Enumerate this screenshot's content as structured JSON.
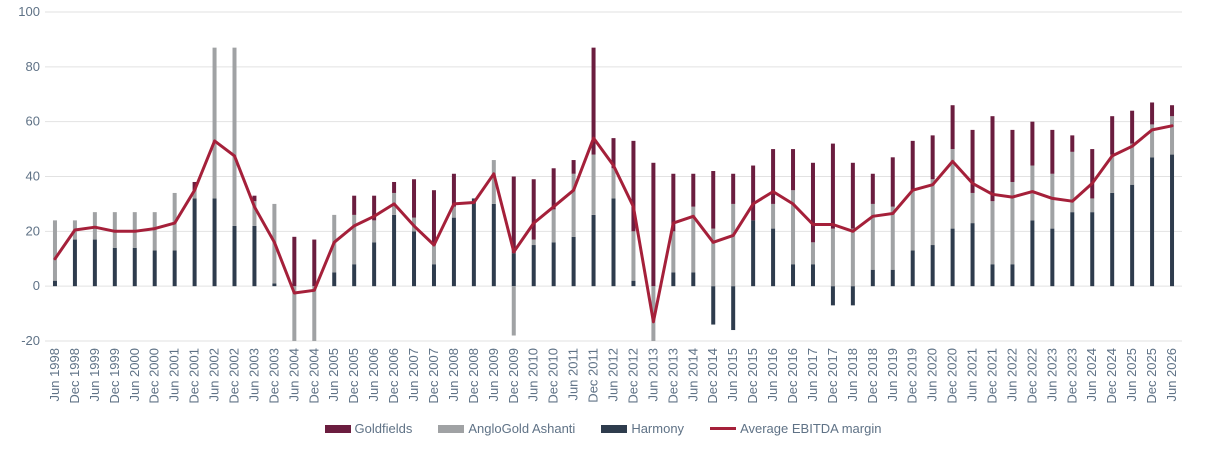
{
  "chart_data": {
    "type": "bar",
    "stacked": true,
    "categories": [
      "Jun 1998",
      "Dec 1998",
      "Jun 1999",
      "Dec 1999",
      "Jun 2000",
      "Dec 2000",
      "Jun 2001",
      "Dec 2001",
      "Jun 2002",
      "Dec 2002",
      "Jun 2003",
      "Dec 2003",
      "Jun 2004",
      "Dec 2004",
      "Jun 2005",
      "Dec 2005",
      "Jun 2006",
      "Dec 2006",
      "Jun 2007",
      "Dec 2007",
      "Jun 2008",
      "Dec 2008",
      "Jun 2009",
      "Dec 2009",
      "Jun 2010",
      "Dec 2010",
      "Jun 2011",
      "Dec 2011",
      "Jun 2012",
      "Dec 2012",
      "Jun 2013",
      "Dec 2013",
      "Jun 2014",
      "Dec 2014",
      "Jun 2015",
      "Dec 2015",
      "Jun 2016",
      "Dec 2016",
      "Jun 2017",
      "Dec 2017",
      "Jun 2018",
      "Dec 2018",
      "Jun 2019",
      "Dec 2019",
      "Jun 2020",
      "Dec 2020",
      "Jun 2021",
      "Dec 2021",
      "Jun 2022",
      "Dec 2022",
      "Jun 2023",
      "Dec 2023",
      "Jun 2024",
      "Dec 2024",
      "Jun 2025",
      "Dec 2025",
      "Jun 2026"
    ],
    "series": [
      {
        "name": "Harmony",
        "color": "#2e3c4d",
        "kind": "bar",
        "values": [
          2,
          17,
          17,
          14,
          14,
          13,
          13,
          32,
          32,
          22,
          22,
          1,
          0,
          0,
          5,
          8,
          16,
          26,
          20,
          8,
          25,
          32,
          30,
          12,
          15,
          16,
          18,
          26,
          32,
          2,
          0,
          5,
          5,
          -14,
          -16,
          24,
          21,
          8,
          8,
          -7,
          -7,
          6,
          6,
          13,
          15,
          21,
          23,
          8,
          8,
          24,
          21,
          27,
          27,
          34,
          37,
          47,
          48
        ]
      },
      {
        "name": "AngloGold Ashanti",
        "color": "#a0a2a4",
        "kind": "bar",
        "values": [
          22,
          7,
          10,
          13,
          13,
          14,
          21,
          3,
          55,
          65,
          9,
          29,
          -20,
          -20,
          21,
          18,
          8,
          8,
          5,
          7,
          4,
          0,
          16,
          -18,
          2,
          12,
          23,
          22,
          11,
          18,
          -20,
          15,
          24,
          21,
          30,
          0,
          9,
          27,
          8,
          21,
          21,
          24,
          23,
          22,
          24,
          29,
          11,
          23,
          30,
          20,
          20,
          22,
          5,
          14,
          15,
          12,
          14
        ]
      },
      {
        "name": "Goldfields",
        "color": "#6b1d3f",
        "kind": "bar",
        "values": [
          0,
          0,
          0,
          0,
          0,
          0,
          0,
          3,
          0,
          0,
          2,
          0,
          18,
          17,
          0,
          7,
          9,
          4,
          14,
          20,
          12,
          0,
          0,
          28,
          22,
          15,
          5,
          39,
          11,
          33,
          45,
          21,
          12,
          21,
          11,
          20,
          20,
          15,
          29,
          31,
          24,
          11,
          18,
          18,
          16,
          16,
          23,
          31,
          19,
          16,
          16,
          6,
          18,
          14,
          12,
          8,
          4
        ]
      },
      {
        "name": "Average EBITDA margin",
        "color": "#a5203a",
        "kind": "line",
        "values": [
          10,
          20.5,
          21.5,
          20,
          20,
          21,
          23,
          35,
          53,
          47.5,
          29,
          16,
          -2.5,
          -1.5,
          16,
          22,
          25.5,
          30,
          22,
          15,
          30,
          30.5,
          41,
          12.5,
          23,
          29,
          35,
          54,
          44,
          29,
          -13,
          23,
          25.5,
          16,
          18.5,
          30,
          34.5,
          30,
          22.5,
          22.5,
          20,
          25.5,
          26.5,
          35,
          37,
          45.5,
          37.5,
          33.5,
          32.5,
          34.5,
          32,
          31,
          37.5,
          47.5,
          51,
          57,
          58.5
        ]
      }
    ],
    "ylim": [
      -20,
      100
    ],
    "yticks": [
      "-20",
      "0",
      "20",
      "40",
      "60",
      "80",
      "100"
    ],
    "grid": true,
    "legend": "bottom"
  },
  "legend": {
    "items": [
      {
        "label": "Goldfields",
        "color": "#6b1d3f",
        "type": "box"
      },
      {
        "label": "AngloGold Ashanti",
        "color": "#a0a2a4",
        "type": "box"
      },
      {
        "label": "Harmony",
        "color": "#2e3c4d",
        "type": "box"
      },
      {
        "label": "Average EBITDA margin",
        "color": "#a5203a",
        "type": "line"
      }
    ]
  }
}
